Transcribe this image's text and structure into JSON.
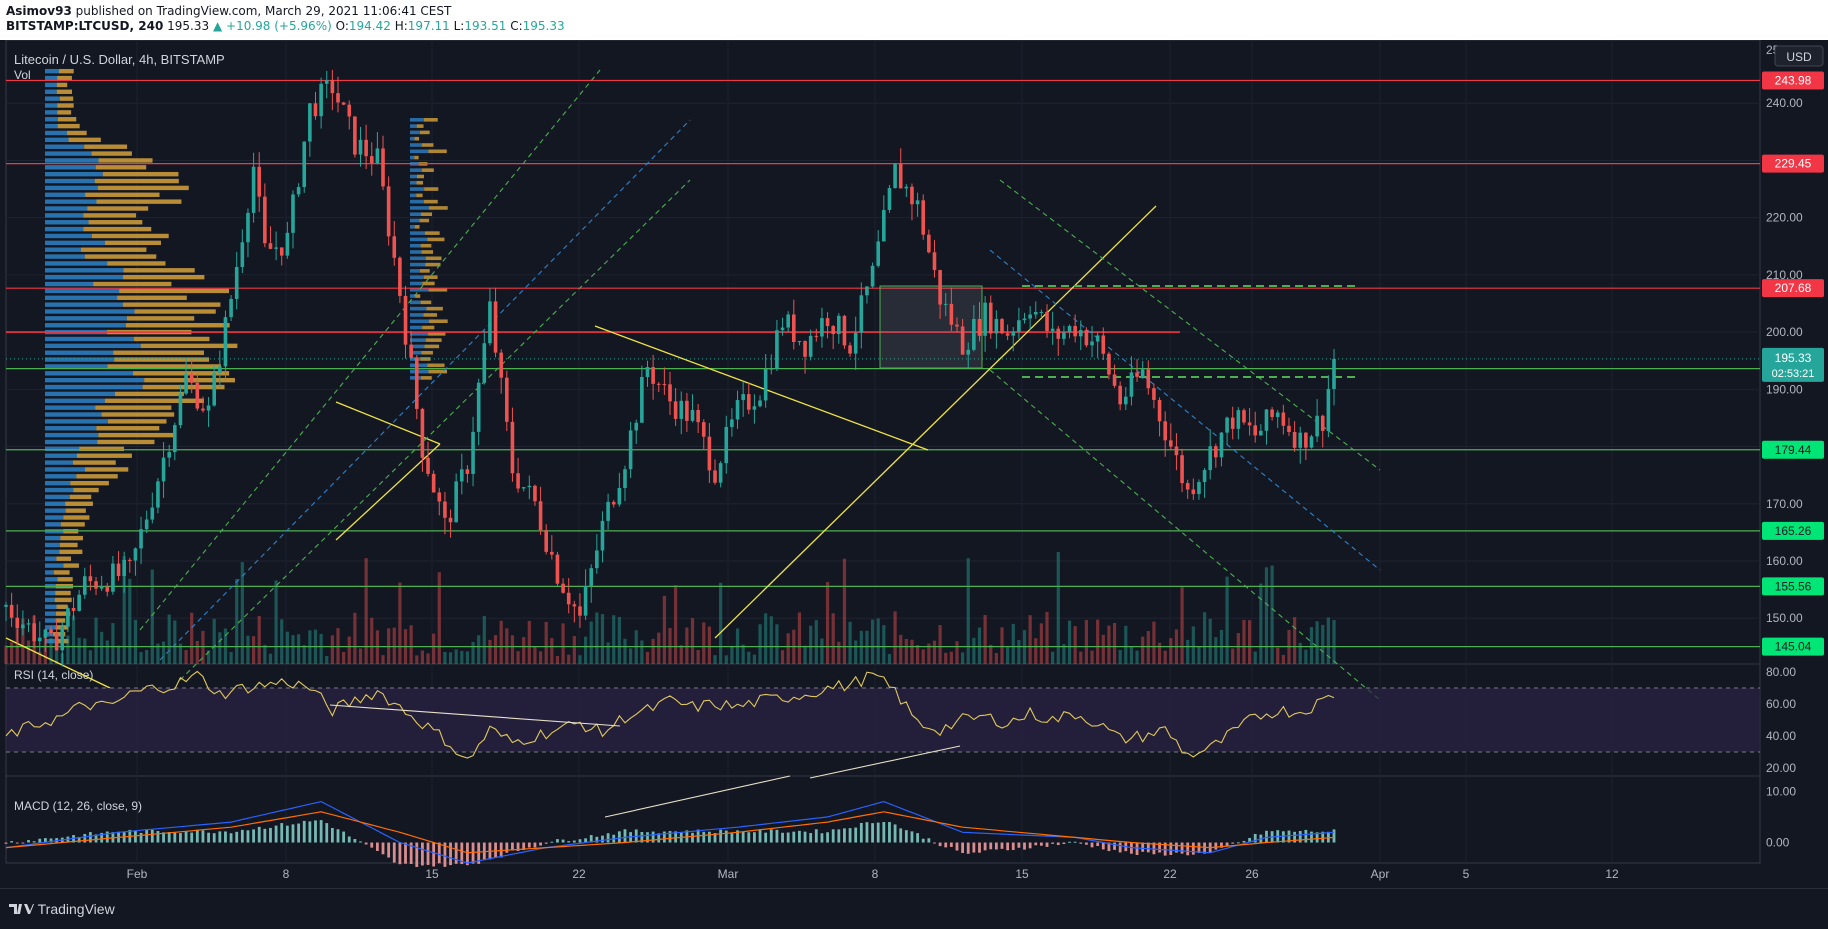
{
  "header": {
    "author": "Asimov93",
    "published": "published on TradingView.com, March 29, 2021 11:06:41 CEST",
    "symbol": "BITSTAMP:LTCUSD, 240",
    "last": "195.33",
    "change": "▲ +10.98 (+5.96%)",
    "o_label": "O:",
    "o": "194.42",
    "h_label": "H:",
    "h": "197.11",
    "l_label": "L:",
    "l": "193.51",
    "c_label": "C:",
    "c": "195.33"
  },
  "price_pane": {
    "title": "Litecoin / U.S. Dollar, 4h, BITSTAMP",
    "vol_label": "Vol",
    "currency_button": "USD"
  },
  "rsi_pane": {
    "title": "RSI (14, close)"
  },
  "macd_pane": {
    "title": "MACD (12, 26, close, 9)"
  },
  "footer": {
    "brand": "TradingView"
  },
  "colors": {
    "background": "#131722",
    "up": "#26a69a",
    "down": "#ef5350",
    "resistance": "#f23645",
    "support": "#4caf50",
    "trend_yellow": "#f0e442",
    "rsi_line": "#e0c95c",
    "rsi_band": "#2b2445",
    "macd_line": "#2962ff",
    "signal_line": "#ff6d00",
    "vp_blue": "#2e82c9",
    "vp_orange": "#d6a23a"
  },
  "chart_data": [
    {
      "type": "candlestick",
      "title": "Litecoin / U.S. Dollar, 4h, BITSTAMP",
      "ylim": [
        142,
        250
      ],
      "y_ticks": [
        150,
        160,
        170,
        180,
        190,
        200,
        210,
        220,
        230,
        240
      ],
      "x_ticks": [
        "Feb",
        "8",
        "15",
        "22",
        "Mar",
        "8",
        "15",
        "22",
        "26",
        "Apr",
        "5",
        "12"
      ],
      "resistance_levels": [
        243.98,
        229.45,
        207.68
      ],
      "support_levels": [
        193.62,
        179.44,
        165.26,
        155.56,
        145.04
      ],
      "current_price": 195.33,
      "countdown": "02:53:21",
      "path": [
        [
          0,
          152
        ],
        [
          8,
          145
        ],
        [
          14,
          156
        ],
        [
          22,
          158
        ],
        [
          28,
          178
        ],
        [
          32,
          192
        ],
        [
          36,
          186
        ],
        [
          40,
          206
        ],
        [
          44,
          229
        ],
        [
          46,
          214
        ],
        [
          50,
          216
        ],
        [
          54,
          239
        ],
        [
          58,
          243
        ],
        [
          62,
          233
        ],
        [
          66,
          230
        ],
        [
          70,
          207
        ],
        [
          74,
          180
        ],
        [
          78,
          166
        ],
        [
          82,
          177
        ],
        [
          86,
          204
        ],
        [
          90,
          176
        ],
        [
          94,
          170
        ],
        [
          98,
          158
        ],
        [
          102,
          150
        ],
        [
          106,
          166
        ],
        [
          110,
          178
        ],
        [
          114,
          194
        ],
        [
          118,
          188
        ],
        [
          122,
          185
        ],
        [
          126,
          176
        ],
        [
          130,
          186
        ],
        [
          134,
          190
        ],
        [
          138,
          202
        ],
        [
          142,
          198
        ],
        [
          146,
          203
        ],
        [
          150,
          198
        ],
        [
          154,
          210
        ],
        [
          158,
          228
        ],
        [
          162,
          222
        ],
        [
          166,
          206
        ],
        [
          170,
          198
        ],
        [
          174,
          203
        ],
        [
          178,
          200
        ],
        [
          182,
          205
        ],
        [
          186,
          199
        ],
        [
          190,
          201
        ],
        [
          194,
          198
        ],
        [
          198,
          188
        ],
        [
          202,
          193
        ],
        [
          206,
          183
        ],
        [
          210,
          172
        ],
        [
          214,
          179
        ],
        [
          218,
          185
        ],
        [
          222,
          182
        ],
        [
          226,
          186
        ],
        [
          230,
          181
        ],
        [
          234,
          185
        ],
        [
          236,
          195.33
        ]
      ]
    },
    {
      "type": "line",
      "title": "RSI (14, close)",
      "ylim": [
        15,
        85
      ],
      "y_ticks": [
        20,
        40,
        60,
        80
      ],
      "bands": [
        30,
        70
      ],
      "path": [
        [
          0,
          40
        ],
        [
          6,
          48
        ],
        [
          10,
          52
        ],
        [
          14,
          60
        ],
        [
          18,
          58
        ],
        [
          22,
          66
        ],
        [
          26,
          70
        ],
        [
          30,
          72
        ],
        [
          34,
          78
        ],
        [
          38,
          66
        ],
        [
          42,
          70
        ],
        [
          46,
          72
        ],
        [
          50,
          74
        ],
        [
          54,
          70
        ],
        [
          58,
          56
        ],
        [
          62,
          62
        ],
        [
          66,
          68
        ],
        [
          70,
          58
        ],
        [
          74,
          48
        ],
        [
          78,
          38
        ],
        [
          82,
          24
        ],
        [
          86,
          44
        ],
        [
          90,
          36
        ],
        [
          94,
          40
        ],
        [
          98,
          44
        ],
        [
          102,
          48
        ],
        [
          106,
          42
        ],
        [
          110,
          52
        ],
        [
          114,
          56
        ],
        [
          118,
          62
        ],
        [
          122,
          58
        ],
        [
          126,
          60
        ],
        [
          130,
          58
        ],
        [
          134,
          62
        ],
        [
          138,
          64
        ],
        [
          142,
          66
        ],
        [
          146,
          70
        ],
        [
          150,
          72
        ],
        [
          154,
          78
        ],
        [
          158,
          68
        ],
        [
          162,
          48
        ],
        [
          166,
          44
        ],
        [
          170,
          50
        ],
        [
          174,
          52
        ],
        [
          178,
          48
        ],
        [
          182,
          54
        ],
        [
          186,
          50
        ],
        [
          190,
          54
        ],
        [
          194,
          48
        ],
        [
          198,
          38
        ],
        [
          202,
          40
        ],
        [
          206,
          44
        ],
        [
          210,
          28
        ],
        [
          214,
          32
        ],
        [
          218,
          42
        ],
        [
          222,
          52
        ],
        [
          226,
          56
        ],
        [
          230,
          55
        ],
        [
          234,
          62
        ],
        [
          236,
          66
        ]
      ]
    },
    {
      "type": "line",
      "title": "MACD (12, 26, close, 9)",
      "ylim": [
        -4,
        13
      ],
      "y_ticks": [
        0.0,
        10.0
      ],
      "series": [
        {
          "name": "MACD",
          "values": [
            [
              0,
              -1
            ],
            [
              20,
              2
            ],
            [
              40,
              4
            ],
            [
              56,
              8
            ],
            [
              70,
              0
            ],
            [
              82,
              -4
            ],
            [
              96,
              -1
            ],
            [
              110,
              1
            ],
            [
              130,
              3
            ],
            [
              146,
              5
            ],
            [
              156,
              8
            ],
            [
              170,
              2
            ],
            [
              190,
              1
            ],
            [
              200,
              -1
            ],
            [
              214,
              -2
            ],
            [
              224,
              1
            ],
            [
              236,
              2
            ]
          ]
        },
        {
          "name": "Signal",
          "values": [
            [
              0,
              -1
            ],
            [
              20,
              1
            ],
            [
              40,
              3
            ],
            [
              56,
              6
            ],
            [
              70,
              2
            ],
            [
              82,
              -2
            ],
            [
              96,
              -1
            ],
            [
              110,
              0
            ],
            [
              130,
              2
            ],
            [
              146,
              4
            ],
            [
              156,
              6
            ],
            [
              170,
              3
            ],
            [
              190,
              1
            ],
            [
              200,
              0
            ],
            [
              214,
              -1
            ],
            [
              224,
              0
            ],
            [
              236,
              1
            ]
          ]
        }
      ]
    }
  ]
}
